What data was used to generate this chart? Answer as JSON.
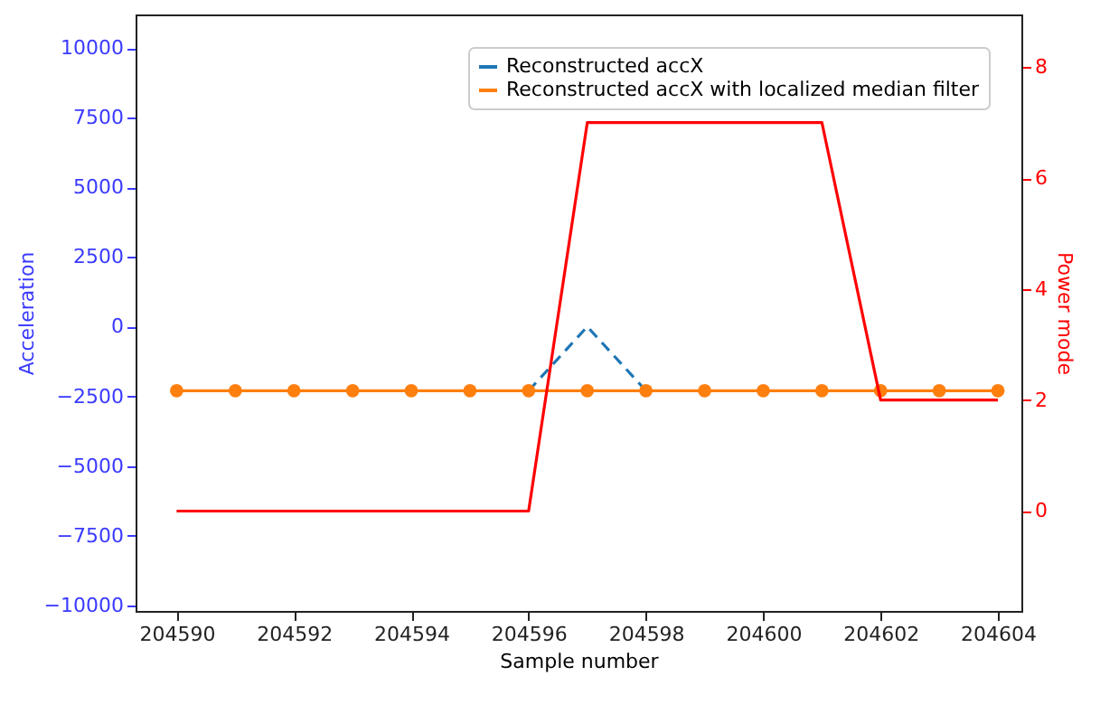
{
  "chart_data": {
    "type": "line",
    "xlabel": "Sample number",
    "ylabel": "Acceleration",
    "y2label": "Power mode",
    "x": [
      204590,
      204591,
      204592,
      204593,
      204594,
      204595,
      204596,
      204597,
      204598,
      204599,
      204600,
      204601,
      204602,
      204603,
      204604
    ],
    "series": [
      {
        "name": "Reconstructed accX",
        "color": "#1f77b4",
        "line_style": "dashed",
        "marker": "none",
        "values": [
          null,
          null,
          null,
          null,
          null,
          null,
          -2300,
          0,
          -2300,
          null,
          null,
          null,
          null,
          null,
          null
        ]
      },
      {
        "name": "Reconstructed accX with localized median filter",
        "color": "#ff7f0e",
        "line_style": "solid",
        "marker": "circle",
        "values": [
          -2300,
          -2300,
          -2300,
          -2300,
          -2300,
          -2300,
          -2300,
          -2300,
          -2300,
          -2300,
          -2300,
          -2300,
          -2300,
          -2300,
          -2300
        ]
      },
      {
        "color": "#ff0000",
        "axis": "y2",
        "line_style": "solid",
        "marker": "none",
        "values": [
          0,
          0,
          0,
          0,
          0,
          0,
          0,
          7,
          7,
          7,
          7,
          7,
          2,
          2,
          2
        ]
      }
    ],
    "xlim": [
      204589.3,
      204604.4
    ],
    "xticks": [
      204590,
      204592,
      204594,
      204596,
      204598,
      204600,
      204602,
      204604
    ],
    "ylim": [
      -10200,
      11200
    ],
    "yticks": [
      -10000,
      -7500,
      -5000,
      -2500,
      0,
      2500,
      5000,
      7500,
      10000
    ],
    "y2lim": [
      -1.8,
      8.95
    ],
    "y2ticks": [
      0,
      2,
      4,
      6,
      8
    ],
    "grid": false,
    "legend": "top right"
  }
}
